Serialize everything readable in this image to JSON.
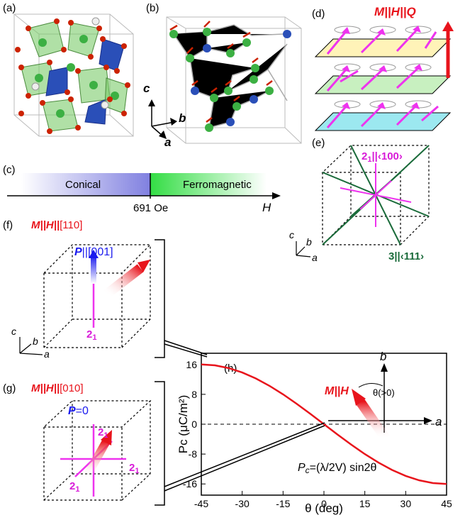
{
  "panels": {
    "a": "(a)",
    "b": "(b)",
    "c": "(c)",
    "d": "(d)",
    "e": "(e)",
    "f": "(f)",
    "g": "(g)",
    "h": "(h)"
  },
  "axes_labels": {
    "a": "a",
    "b": "b",
    "c": "c"
  },
  "panel_c": {
    "left": "Conical",
    "right": "Ferromagnetic",
    "field": "691 Oe",
    "axis": "H"
  },
  "panel_d": {
    "label_prefix": "M||H||",
    "label_suffix": "Q"
  },
  "panel_e": {
    "top_prefix": "2",
    "top_sub": "1",
    "top_suffix": "||‹100›",
    "bottom": "3||‹111›"
  },
  "panel_f": {
    "title_prefix": "M||H||",
    "title_suffix": "[110]",
    "p_prefix": "P",
    "p_suffix": "||[001]",
    "axis_base": "2",
    "axis_sub": "1"
  },
  "panel_g": {
    "title_prefix": "M||H||",
    "title_suffix": "[010]",
    "p_prefix": "P",
    "p_suffix": "=0",
    "axis_base": "2",
    "axis_sub": "1"
  },
  "panel_h": {
    "inset_label": "M||H",
    "inset_angle": "θ(>0)",
    "formula_lhs": "P",
    "formula_sub": "c",
    "formula_rhs": "=(λ/2V) sin2θ",
    "ylabel": "Pc (μC/m²)",
    "xlabel": "θ (deg)"
  },
  "colors": {
    "red": "#e8141c",
    "magenta": "#ee33ee",
    "green_dark": "#1a6b3a",
    "blue": "#1a1aee"
  },
  "chart_data": {
    "type": "line",
    "title": "",
    "xlabel": "θ (deg)",
    "ylabel": "Pc (μC/m²)",
    "xlim": [
      -45,
      45
    ],
    "ylim": [
      -19,
      19
    ],
    "xticks": [
      -45,
      -30,
      -15,
      0,
      15,
      30,
      45
    ],
    "yticks": [
      16,
      8,
      0,
      -8,
      -16
    ],
    "series": [
      {
        "values": [
          [
            -45,
            16
          ],
          [
            -40,
            15.76
          ],
          [
            -35,
            15.04
          ],
          [
            -30,
            13.86
          ],
          [
            -25,
            12.26
          ],
          [
            -20,
            10.28
          ],
          [
            -15,
            8
          ],
          [
            -10,
            5.47
          ],
          [
            -5,
            2.78
          ],
          [
            0,
            0
          ],
          [
            5,
            -2.78
          ],
          [
            10,
            -5.47
          ],
          [
            15,
            -8
          ],
          [
            20,
            -10.28
          ],
          [
            25,
            -12.26
          ],
          [
            30,
            -13.86
          ],
          [
            35,
            -15.04
          ],
          [
            40,
            -15.76
          ],
          [
            45,
            -16
          ]
        ]
      }
    ],
    "reference_line": {
      "y": 0,
      "style": "dashed"
    }
  }
}
